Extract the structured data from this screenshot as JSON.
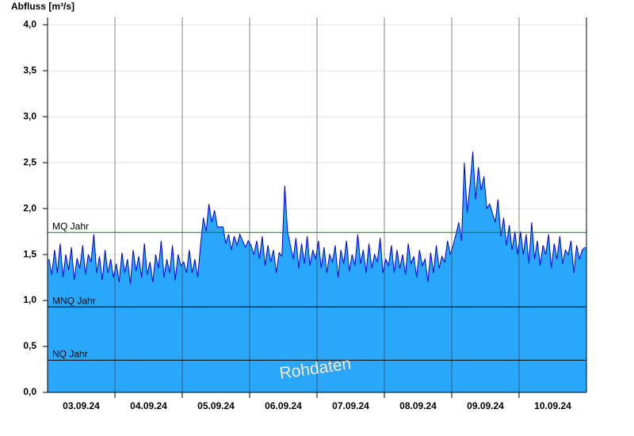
{
  "chart_data": {
    "type": "area",
    "y_label": "Abfluss [m³/s]",
    "annotation": "Rohdaten",
    "categories": [
      "03.09.24",
      "04.09.24",
      "05.09.24",
      "06.09.24",
      "07.09.24",
      "08.09.24",
      "09.09.24",
      "10.09.24"
    ],
    "values": [
      [
        1.45,
        1.28,
        1.55,
        1.3,
        1.62,
        1.25,
        1.5,
        1.33,
        1.58,
        1.22,
        1.46,
        1.35,
        1.6,
        1.28,
        1.5,
        1.42,
        1.72,
        1.3,
        1.48,
        1.22,
        1.55,
        1.3,
        1.45,
        1.25
      ],
      [
        1.4,
        1.2,
        1.52,
        1.3,
        1.45,
        1.18,
        1.55,
        1.32,
        1.48,
        1.25,
        1.62,
        1.28,
        1.42,
        1.2,
        1.5,
        1.35,
        1.65,
        1.25,
        1.45,
        1.3,
        1.6,
        1.22,
        1.5,
        1.38
      ],
      [
        1.42,
        1.3,
        1.55,
        1.3,
        1.45,
        1.25,
        1.6,
        1.9,
        1.75,
        2.05,
        1.85,
        1.98,
        1.8,
        1.8,
        1.8,
        1.62,
        1.72,
        1.55,
        1.7,
        1.6,
        1.72,
        1.65,
        1.58,
        1.65
      ],
      [
        1.6,
        1.5,
        1.65,
        1.45,
        1.7,
        1.38,
        1.6,
        1.42,
        1.55,
        1.3,
        1.52,
        1.48,
        2.25,
        1.75,
        1.6,
        1.45,
        1.68,
        1.35,
        1.62,
        1.4,
        1.7,
        1.38,
        1.55,
        1.45
      ],
      [
        1.65,
        1.35,
        1.58,
        1.3,
        1.5,
        1.42,
        1.6,
        1.25,
        1.55,
        1.4,
        1.65,
        1.32,
        1.5,
        1.38,
        1.72,
        1.4,
        1.55,
        1.3,
        1.62,
        1.35,
        1.5,
        1.42,
        1.68,
        1.3
      ],
      [
        1.45,
        1.38,
        1.6,
        1.3,
        1.55,
        1.35,
        1.5,
        1.28,
        1.62,
        1.4,
        1.48,
        1.25,
        1.55,
        1.38,
        1.45,
        1.2,
        1.52,
        1.3,
        1.6,
        1.35,
        1.48,
        1.42,
        1.65,
        1.5
      ],
      [
        1.6,
        1.72,
        1.85,
        1.65,
        2.5,
        1.95,
        2.25,
        2.62,
        2.1,
        2.45,
        2.2,
        2.35,
        2.0,
        2.05,
        1.95,
        1.85,
        2.1,
        1.7,
        1.9,
        1.6,
        1.82,
        1.55,
        1.75,
        1.5
      ],
      [
        1.75,
        1.5,
        1.72,
        1.4,
        1.85,
        1.45,
        1.65,
        1.38,
        1.6,
        1.5,
        1.72,
        1.35,
        1.62,
        1.45,
        1.7,
        1.4,
        1.55,
        1.5,
        1.65,
        1.3,
        1.6,
        1.45,
        1.55,
        1.58
      ]
    ],
    "fill_color": "#29a7fb",
    "line_color": "#0000d0",
    "ylim": [
      0,
      4.08
    ],
    "yticks": [
      {
        "value": 0,
        "label": "0,0"
      },
      {
        "value": 0.5,
        "label": "0,5"
      },
      {
        "value": 1,
        "label": "1,0"
      },
      {
        "value": 1.5,
        "label": "1,5"
      },
      {
        "value": 2,
        "label": "2,0"
      },
      {
        "value": 2.5,
        "label": "2,5"
      },
      {
        "value": 3,
        "label": "3,0"
      },
      {
        "value": 3.5,
        "label": "3,5"
      },
      {
        "value": 4,
        "label": "4,0"
      }
    ],
    "grid": true,
    "reference_lines": [
      {
        "label": "MQ Jahr",
        "value": 1.74,
        "color": "#1a7a1a"
      },
      {
        "label": "MNQ Jahr",
        "value": 0.93,
        "color": "#000000"
      },
      {
        "label": "NQ Jahr",
        "value": 0.35,
        "color": "#000000"
      }
    ]
  }
}
